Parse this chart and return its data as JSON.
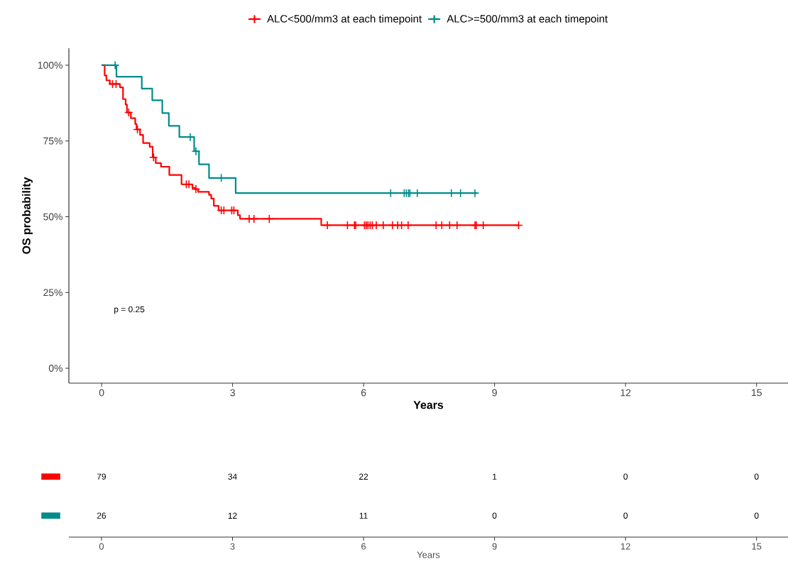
{
  "chart_data": [
    {
      "type": "step",
      "xlabel": "Years",
      "ylabel": "OS probability",
      "annotations": [
        "p = 0.25"
      ],
      "xlim": [
        -0.75,
        15.72
      ],
      "ylim": [
        -4.9,
        105.6
      ],
      "xticks": [
        0,
        3,
        6,
        9,
        12,
        15
      ],
      "yticks": [
        {
          "value": 0,
          "label": "0%"
        },
        {
          "value": 25,
          "label": "25%"
        },
        {
          "value": 50,
          "label": "50%"
        },
        {
          "value": 75,
          "label": "75%"
        },
        {
          "value": 100,
          "label": "100%"
        }
      ],
      "legend": "top",
      "series": [
        {
          "name": "ALC<500/mm3 at each timepoint",
          "color": "#ff0000",
          "type": "step",
          "x": [
            0,
            0.07,
            0.11,
            0.19,
            0.42,
            0.49,
            0.55,
            0.58,
            0.67,
            0.77,
            0.8,
            0.88,
            0.95,
            1.1,
            1.17,
            1.24,
            1.36,
            1.55,
            1.83,
            2.08,
            2.14,
            2.21,
            2.46,
            2.51,
            2.57,
            2.68,
            3.12,
            3.17,
            5.03,
            9.55
          ],
          "values": [
            100,
            96.6,
            95.0,
            93.8,
            92.7,
            88.8,
            87.0,
            84.4,
            82.5,
            80.6,
            78.8,
            77.0,
            74.3,
            73.1,
            69.6,
            67.7,
            66.5,
            63.8,
            60.7,
            59.5,
            59.1,
            58.2,
            57.2,
            56.0,
            53.6,
            52.1,
            50.5,
            49.3,
            47.2,
            47.2
          ]
        },
        {
          "name": "ALC>=500/mm3 at each timepoint",
          "color": "#008b8b",
          "type": "step",
          "x": [
            0,
            0.34,
            0.92,
            1.16,
            1.39,
            1.54,
            1.78,
            2.12,
            2.23,
            2.46,
            3.07,
            8.6
          ],
          "values": [
            100,
            96.2,
            92.3,
            88.4,
            84.2,
            80.0,
            76.3,
            71.6,
            67.3,
            62.8,
            57.8,
            57.8
          ]
        },
        {
          "color": "#ff0000",
          "type": "scatter",
          "marker": "cross",
          "x": [
            0.25,
            0.33,
            0.62,
            0.82,
            1.19,
            1.94,
            2.0,
            2.16,
            2.74,
            2.8,
            2.98,
            3.03,
            3.38,
            3.49,
            3.84,
            5.17,
            5.63,
            5.79,
            5.82,
            6.02,
            6.06,
            6.1,
            6.15,
            6.2,
            6.29,
            6.45,
            6.66,
            6.78,
            6.87,
            7.02,
            7.66,
            7.79,
            7.97,
            8.14,
            8.55,
            8.58,
            8.74,
            9.55
          ],
          "values": [
            93.8,
            93.8,
            84.4,
            78.8,
            69.6,
            60.7,
            60.7,
            59.1,
            52.1,
            52.1,
            52.1,
            52.1,
            49.3,
            49.3,
            49.3,
            47.2,
            47.2,
            47.2,
            47.2,
            47.2,
            47.2,
            47.2,
            47.2,
            47.2,
            47.2,
            47.2,
            47.2,
            47.2,
            47.2,
            47.2,
            47.2,
            47.2,
            47.2,
            47.2,
            47.2,
            47.2,
            47.2,
            47.2
          ]
        },
        {
          "color": "#008b8b",
          "type": "scatter",
          "marker": "cross",
          "x": [
            0.31,
            2.03,
            2.16,
            2.74,
            6.62,
            6.93,
            6.98,
            7.03,
            7.06,
            7.23,
            8.01,
            8.22,
            8.55
          ],
          "values": [
            100,
            76.3,
            71.6,
            62.8,
            57.8,
            57.8,
            57.8,
            57.8,
            57.8,
            57.8,
            57.8,
            57.8,
            57.8
          ]
        }
      ]
    },
    {
      "type": "heatmap",
      "xlabel": "Years",
      "categories": [
        "0",
        "3",
        "6",
        "9",
        "12",
        "15"
      ],
      "y_categories": [
        null,
        null
      ],
      "data_labels": true,
      "cells": [
        [
          79,
          34,
          22,
          1,
          0,
          0
        ],
        [
          26,
          12,
          11,
          0,
          0,
          0
        ]
      ]
    }
  ]
}
